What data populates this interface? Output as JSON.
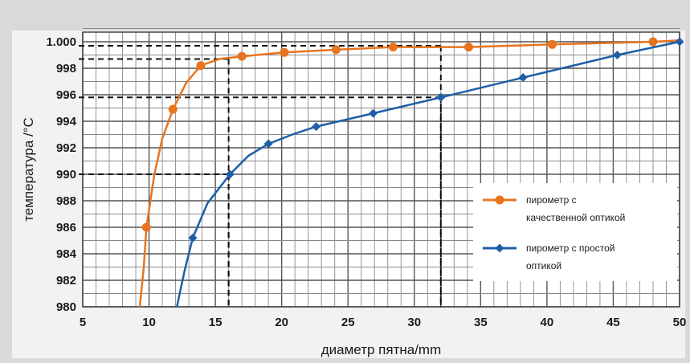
{
  "chart_data": {
    "type": "line",
    "xlabel": "диаметр пятна/mm",
    "ylabel": "температура /°C",
    "xlim": [
      5,
      50
    ],
    "ylim": [
      980,
      1001
    ],
    "x_ticks": [
      "5",
      "10",
      "15",
      "20",
      "25",
      "30",
      "35",
      "40",
      "45",
      "50"
    ],
    "y_ticks": [
      "980",
      "982",
      "984",
      "986",
      "988",
      "990",
      "992",
      "994",
      "996",
      "998",
      "1.000"
    ],
    "grid": true,
    "legend_position": "right",
    "series": [
      {
        "name": "пирометр с качественной оптикой",
        "color": "#e8741e",
        "points": [
          [
            9.8,
            986
          ],
          [
            11.8,
            994.9
          ],
          [
            13.9,
            998.2
          ],
          [
            17.0,
            998.9
          ],
          [
            20.2,
            999.2
          ],
          [
            24.1,
            999.4
          ],
          [
            28.4,
            999.6
          ],
          [
            34.1,
            999.6
          ],
          [
            40.4,
            999.8
          ],
          [
            48.0,
            1000.0
          ]
        ],
        "curve": [
          [
            9.3,
            980
          ],
          [
            9.6,
            983
          ],
          [
            9.8,
            986
          ],
          [
            10.4,
            990
          ],
          [
            11.0,
            992.7
          ],
          [
            11.8,
            994.9
          ],
          [
            12.8,
            996.9
          ],
          [
            13.9,
            998.2
          ],
          [
            15.3,
            998.7
          ],
          [
            17.0,
            998.9
          ],
          [
            20.2,
            999.2
          ],
          [
            24.1,
            999.4
          ],
          [
            28.4,
            999.6
          ],
          [
            34.1,
            999.6
          ],
          [
            40.4,
            999.8
          ],
          [
            48.0,
            1000.0
          ],
          [
            50,
            1000.1
          ]
        ]
      },
      {
        "name": "пирометр с простой оптикой",
        "color": "#1e5fa8",
        "points": [
          [
            13.3,
            985.2
          ],
          [
            16.1,
            990.0
          ],
          [
            19.0,
            992.3
          ],
          [
            22.6,
            993.6
          ],
          [
            26.9,
            994.6
          ],
          [
            32.0,
            995.8
          ],
          [
            38.2,
            997.3
          ],
          [
            45.3,
            999.0
          ],
          [
            50.0,
            1000.0
          ]
        ],
        "curve": [
          [
            12.1,
            980
          ],
          [
            12.7,
            982.8
          ],
          [
            13.3,
            985.2
          ],
          [
            14.4,
            987.8
          ],
          [
            16.1,
            990.0
          ],
          [
            17.5,
            991.4
          ],
          [
            19.0,
            992.3
          ],
          [
            20.8,
            993.0
          ],
          [
            22.6,
            993.6
          ],
          [
            26.9,
            994.6
          ],
          [
            32.0,
            995.8
          ],
          [
            38.2,
            997.3
          ],
          [
            45.3,
            999.0
          ],
          [
            50.0,
            1000.0
          ]
        ]
      }
    ],
    "reference_lines": [
      {
        "x": 16,
        "y": 990
      },
      {
        "x": 32,
        "y": 995.8
      },
      {
        "x": 16,
        "y": 998.7
      },
      {
        "x": 32,
        "y": 999.7
      }
    ]
  }
}
